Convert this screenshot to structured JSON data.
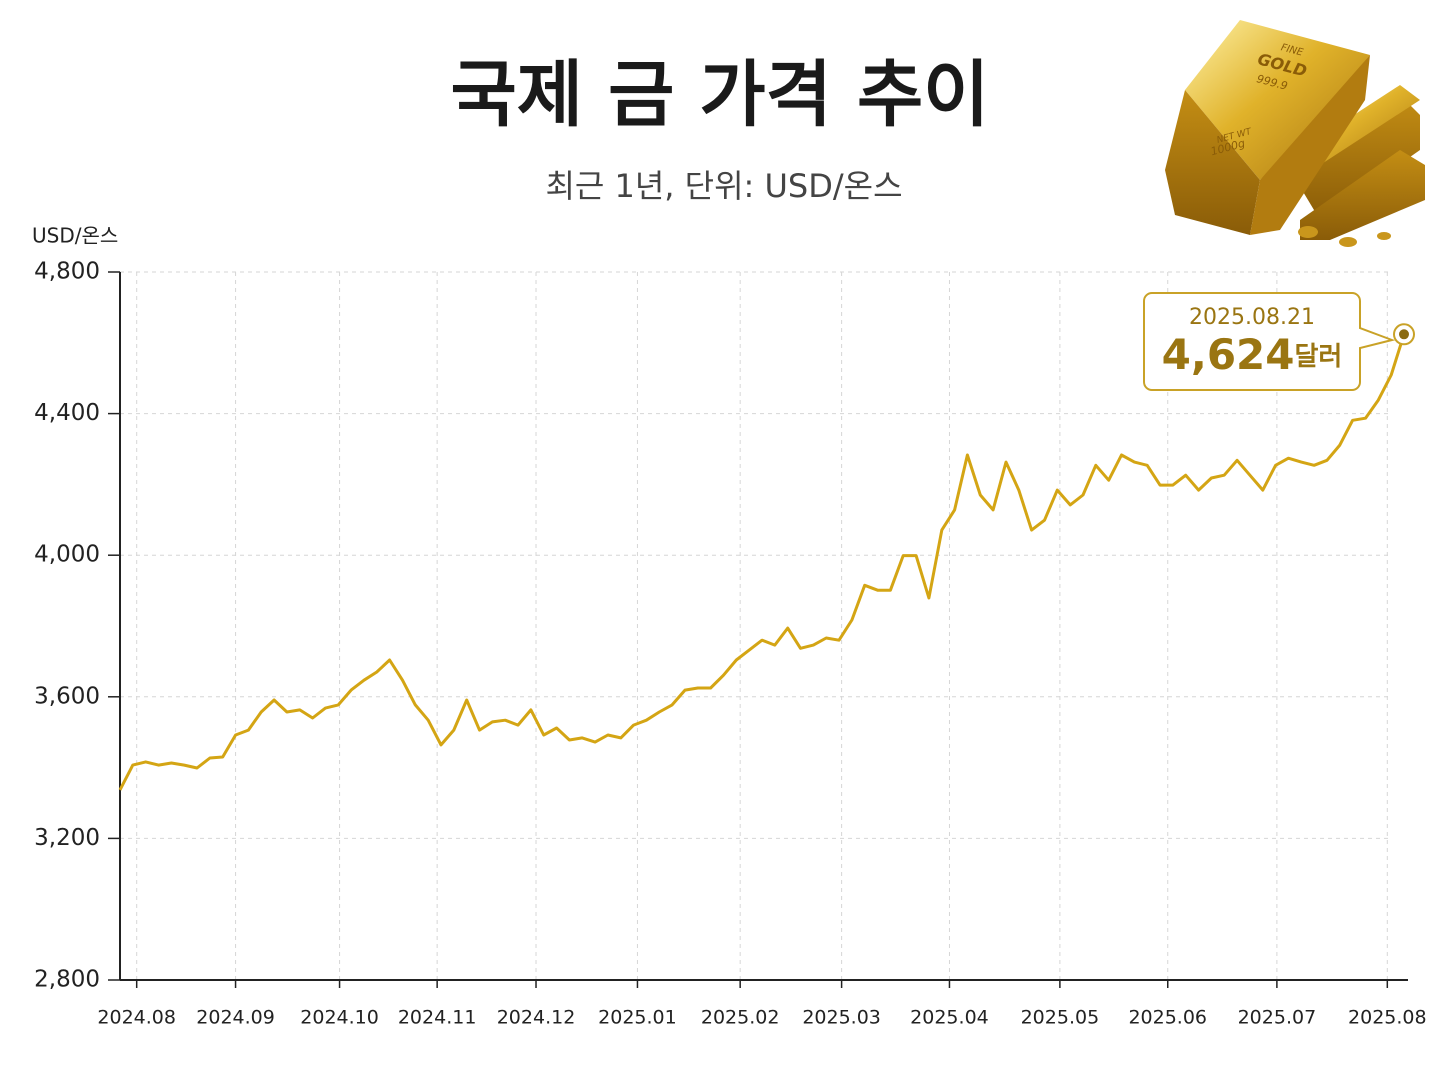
{
  "chart_data": {
    "type": "line",
    "title": "국제 금 가격 추이",
    "subtitle": "최근 1년, 단위: USD/온스",
    "y_axis_label": "USD/온스",
    "color": "#d4a514",
    "grid": true,
    "ylim": [
      2800,
      4800
    ],
    "yticks": [
      {
        "value": 2800,
        "label": "2,800"
      },
      {
        "value": 3200,
        "label": "3,200"
      },
      {
        "value": 3600,
        "label": "3,600"
      },
      {
        "value": 4000,
        "label": "4,000"
      },
      {
        "value": 4400,
        "label": "4,400"
      },
      {
        "value": 4800,
        "label": "4,800"
      }
    ],
    "xlim": [
      0,
      100
    ],
    "xticks": [
      {
        "value": 1.3,
        "label": "2024.08"
      },
      {
        "value": 9,
        "label": "2024.09"
      },
      {
        "value": 17.1,
        "label": "2024.10"
      },
      {
        "value": 24.7,
        "label": "2024.11"
      },
      {
        "value": 32.4,
        "label": "2024.12"
      },
      {
        "value": 40.3,
        "label": "2025.01"
      },
      {
        "value": 48.3,
        "label": "2025.02"
      },
      {
        "value": 56.2,
        "label": "2025.03"
      },
      {
        "value": 64.6,
        "label": "2025.04"
      },
      {
        "value": 73.2,
        "label": "2025.05"
      },
      {
        "value": 81.6,
        "label": "2025.06"
      },
      {
        "value": 90.1,
        "label": "2025.07"
      },
      {
        "value": 98.7,
        "label": "2025.08"
      }
    ],
    "values": [
      3337,
      3407,
      3416,
      3407,
      3413,
      3407,
      3399,
      3427,
      3430,
      3492,
      3506,
      3557,
      3591,
      3557,
      3563,
      3540,
      3568,
      3577,
      3619,
      3647,
      3670,
      3704,
      3647,
      3577,
      3534,
      3464,
      3506,
      3591,
      3506,
      3529,
      3534,
      3520,
      3563,
      3492,
      3512,
      3478,
      3484,
      3472,
      3492,
      3484,
      3520,
      3534,
      3557,
      3577,
      3619,
      3625,
      3625,
      3661,
      3704,
      3732,
      3760,
      3746,
      3794,
      3737,
      3746,
      3766,
      3760,
      3817,
      3915,
      3901,
      3901,
      3999,
      3999,
      3879,
      4071,
      4128,
      4283,
      4170,
      4128,
      4263,
      4184,
      4071,
      4099,
      4184,
      4142,
      4170,
      4254,
      4212,
      4283,
      4263,
      4254,
      4198,
      4198,
      4226,
      4184,
      4218,
      4226,
      4268,
      4226,
      4184,
      4254,
      4274,
      4263,
      4254,
      4268,
      4311,
      4381,
      4387,
      4438,
      4509,
      4624
    ],
    "annotation": {
      "date": "2025.08.21",
      "value": 4624,
      "value_label": "4,624",
      "unit": "달러"
    },
    "image_text": [
      "FINE",
      "GOLD",
      "999.9",
      "NET WT",
      "1000g"
    ]
  }
}
